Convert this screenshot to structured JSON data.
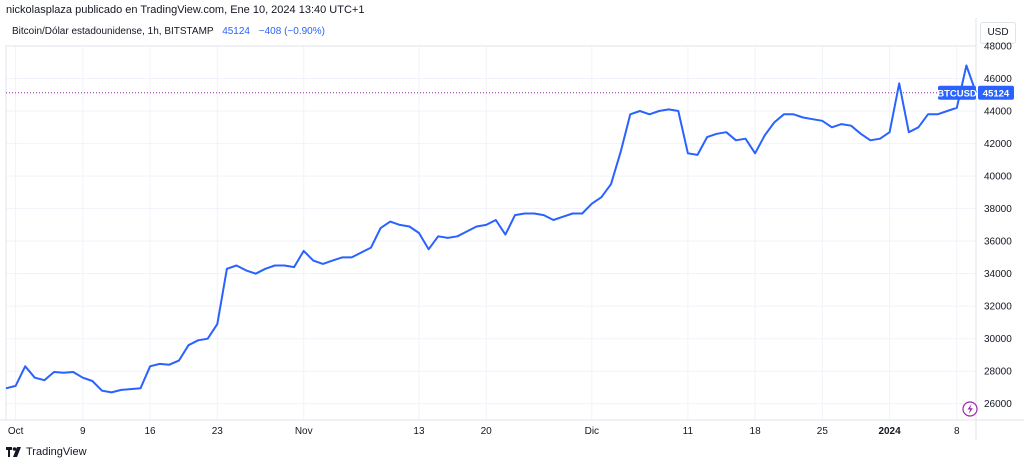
{
  "header": {
    "publisher_line": "nickolasplaza publicado en TradingView.com, Ene 10, 2024 13:40 UTC+1",
    "symbol_line": "Bitcoin/Dólar estadounidense, 1h, BITSTAMP",
    "last_price": "45124",
    "change": "−408 (−0.90%)"
  },
  "currency_button": "USD",
  "price_tags": {
    "symbol_tag": "BTCUSD",
    "price_tag": "45124"
  },
  "footer": {
    "brand": "TradingView"
  },
  "colors": {
    "line": "#2962ff",
    "tag_bg": "#2962ff",
    "price_line": "#9c27b0",
    "axis_text": "#131722",
    "grid": "#f0f3fa"
  },
  "icons": {
    "flash": "lightning-icon",
    "brand": "tradingview-logo-icon"
  },
  "chart_data": {
    "type": "line",
    "ylim": [
      25000,
      48000
    ],
    "y_ticks": [
      26000,
      28000,
      30000,
      32000,
      34000,
      36000,
      38000,
      40000,
      42000,
      44000,
      46000,
      48000
    ],
    "x_ticks": [
      "Oct",
      "9",
      "16",
      "23",
      "Nov",
      "13",
      "20",
      "Dic",
      "11",
      "18",
      "25",
      "2024",
      "8"
    ],
    "x_tick_dates": [
      "2023-10-02",
      "2023-10-09",
      "2023-10-16",
      "2023-10-23",
      "2023-11-01",
      "2023-11-13",
      "2023-11-20",
      "2023-12-01",
      "2023-12-11",
      "2023-12-18",
      "2023-12-25",
      "2024-01-01",
      "2024-01-08"
    ],
    "xlim": [
      "2023-10-01",
      "2024-01-10"
    ],
    "last_price": 45124,
    "series": [
      {
        "x": [
          "2023-10-01",
          "2023-10-02",
          "2023-10-03",
          "2023-10-04",
          "2023-10-05",
          "2023-10-06",
          "2023-10-07",
          "2023-10-08",
          "2023-10-09",
          "2023-10-10",
          "2023-10-11",
          "2023-10-12",
          "2023-10-13",
          "2023-10-14",
          "2023-10-15",
          "2023-10-16",
          "2023-10-17",
          "2023-10-18",
          "2023-10-19",
          "2023-10-20",
          "2023-10-21",
          "2023-10-22",
          "2023-10-23",
          "2023-10-24",
          "2023-10-25",
          "2023-10-26",
          "2023-10-27",
          "2023-10-28",
          "2023-10-29",
          "2023-10-30",
          "2023-10-31",
          "2023-11-01",
          "2023-11-02",
          "2023-11-03",
          "2023-11-04",
          "2023-11-05",
          "2023-11-06",
          "2023-11-07",
          "2023-11-08",
          "2023-11-09",
          "2023-11-10",
          "2023-11-11",
          "2023-11-12",
          "2023-11-13",
          "2023-11-14",
          "2023-11-15",
          "2023-11-16",
          "2023-11-17",
          "2023-11-18",
          "2023-11-19",
          "2023-11-20",
          "2023-11-21",
          "2023-11-22",
          "2023-11-23",
          "2023-11-24",
          "2023-11-25",
          "2023-11-26",
          "2023-11-27",
          "2023-11-28",
          "2023-11-29",
          "2023-11-30",
          "2023-12-01",
          "2023-12-02",
          "2023-12-03",
          "2023-12-04",
          "2023-12-05",
          "2023-12-06",
          "2023-12-07",
          "2023-12-08",
          "2023-12-09",
          "2023-12-10",
          "2023-12-11",
          "2023-12-12",
          "2023-12-13",
          "2023-12-14",
          "2023-12-15",
          "2023-12-16",
          "2023-12-17",
          "2023-12-18",
          "2023-12-19",
          "2023-12-20",
          "2023-12-21",
          "2023-12-22",
          "2023-12-23",
          "2023-12-24",
          "2023-12-25",
          "2023-12-26",
          "2023-12-27",
          "2023-12-28",
          "2023-12-29",
          "2023-12-30",
          "2023-12-31",
          "2024-01-01",
          "2024-01-02",
          "2024-01-03",
          "2024-01-04",
          "2024-01-05",
          "2024-01-06",
          "2024-01-07",
          "2024-01-08",
          "2024-01-09",
          "2024-01-10"
        ],
        "values": [
          26950,
          27100,
          28300,
          27600,
          27450,
          27950,
          27900,
          27950,
          27600,
          27400,
          26800,
          26700,
          26850,
          26900,
          26950,
          28300,
          28450,
          28400,
          28650,
          29600,
          29900,
          30000,
          30900,
          34300,
          34500,
          34200,
          34000,
          34300,
          34500,
          34500,
          34400,
          35400,
          34800,
          34600,
          34800,
          35000,
          35000,
          35300,
          35600,
          36800,
          37200,
          37000,
          36900,
          36500,
          35500,
          36300,
          36200,
          36300,
          36600,
          36900,
          37000,
          37300,
          36400,
          37600,
          37700,
          37700,
          37600,
          37300,
          37500,
          37700,
          37700,
          38300,
          38700,
          39500,
          41500,
          43800,
          44000,
          43800,
          44000,
          44100,
          44000,
          41400,
          41300,
          42400,
          42600,
          42700,
          42200,
          42300,
          41400,
          42500,
          43300,
          43800,
          43800,
          43600,
          43500,
          43400,
          43000,
          43200,
          43100,
          42600,
          42200,
          42300,
          42700,
          45700,
          42700,
          43000,
          43800,
          43800,
          44000,
          44200,
          46800,
          45124
        ]
      }
    ]
  }
}
